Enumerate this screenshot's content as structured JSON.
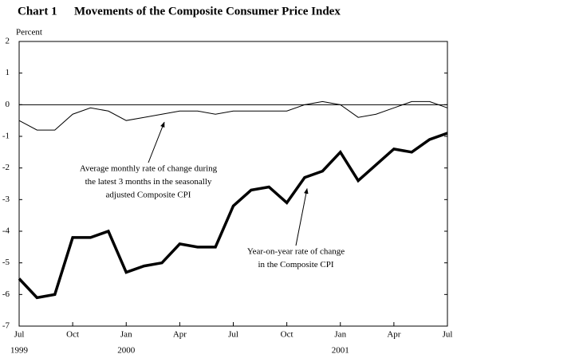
{
  "chart_data": {
    "type": "line",
    "chart_label": "Chart 1",
    "title": "Movements of the Composite Consumer Price Index",
    "y_label": "Percent",
    "categories": [
      "Jul",
      null,
      null,
      "Oct",
      null,
      null,
      "Jan",
      null,
      null,
      "Apr",
      null,
      null,
      "Jul",
      null,
      null,
      "Oct",
      null,
      null,
      "Jan",
      null,
      null,
      "Apr",
      null,
      null,
      "Jul"
    ],
    "category_years": [
      "1999",
      null,
      null,
      null,
      null,
      null,
      "2000",
      null,
      null,
      null,
      null,
      null,
      null,
      null,
      null,
      null,
      null,
      null,
      "2001",
      null,
      null,
      null,
      null,
      null,
      null
    ],
    "series": [
      {
        "name": "Average monthly rate of change during the latest 3 months in the seasonally adjusted Composite CPI",
        "color": "#000000",
        "line_width": 1,
        "values": [
          -0.5,
          -0.8,
          -0.8,
          -0.3,
          -0.1,
          -0.2,
          -0.5,
          -0.4,
          -0.3,
          -0.2,
          -0.2,
          -0.3,
          -0.2,
          -0.2,
          -0.2,
          -0.2,
          0.0,
          0.1,
          0.0,
          -0.4,
          -0.3,
          -0.1,
          0.1,
          0.1,
          -0.1
        ]
      },
      {
        "name": "Year-on-year rate of change in the Composite CPI",
        "color": "#000000",
        "line_width": 3.5,
        "values": [
          -5.5,
          -6.1,
          -6.0,
          -4.2,
          -4.2,
          -4.0,
          -5.3,
          -5.1,
          -5.0,
          -4.4,
          -4.5,
          -4.5,
          -3.2,
          -2.7,
          -2.6,
          -3.1,
          -2.3,
          -2.1,
          -1.5,
          -2.4,
          -1.9,
          -1.4,
          -1.5,
          -1.1,
          -0.9
        ]
      }
    ],
    "annotations": [
      {
        "lines": [
          "Average monthly rate of change during",
          "the latest 3 months in the seasonally",
          "adjusted Composite CPI"
        ],
        "series": 0,
        "index": 8
      },
      {
        "lines": [
          "Year-on-year rate of change",
          "in the Composite CPI"
        ],
        "series": 1,
        "index": 16
      }
    ],
    "ylim": [
      -7,
      2
    ],
    "yticks": [
      -7,
      -6,
      -5,
      -4,
      -3,
      -2,
      -1,
      0,
      1,
      2
    ],
    "reference_line": 0
  }
}
